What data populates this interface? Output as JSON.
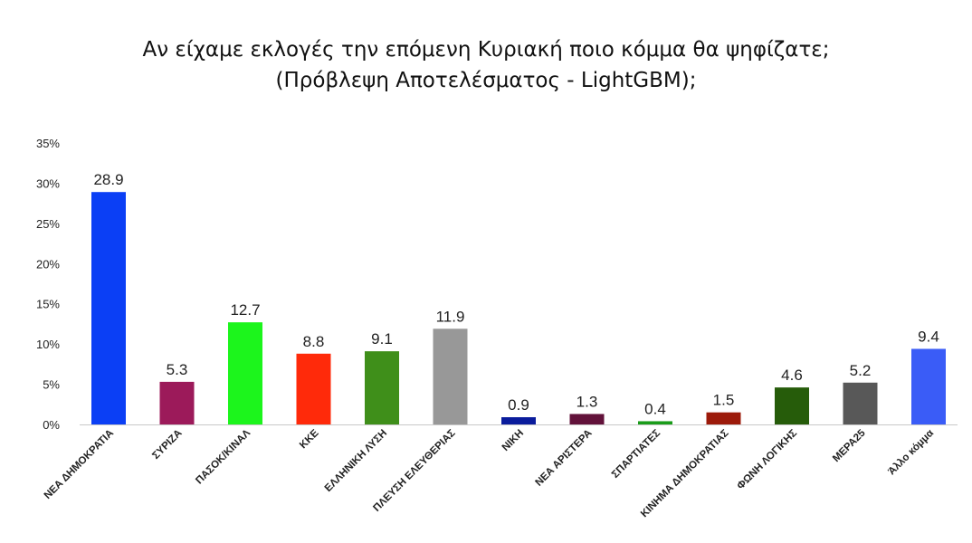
{
  "chart_data": {
    "type": "bar",
    "title": "Αν είχαμε εκλογές την επόμενη Κυριακή ποιο κόμμα θα ψηφίζατε;",
    "subtitle": "(Πρόβλεψη Αποτελέσματος - LightGBM);",
    "xlabel": "",
    "ylabel": "",
    "ylim": [
      0,
      35
    ],
    "yticks": [
      0,
      5,
      10,
      15,
      20,
      25,
      30,
      35
    ],
    "ytick_labels": [
      "0%",
      "5%",
      "10%",
      "15%",
      "20%",
      "25%",
      "30%",
      "35%"
    ],
    "grid": false,
    "legend": "none",
    "categories": [
      "ΝΕΑ ΔΗΜΟΚΡΑΤΙΑ",
      "ΣΥΡΙΖΑ",
      "ΠΑΣΟΚ/ΚΙΝΑΛ",
      "ΚΚΕ",
      "ΕΛΛΗΝΙΚΗ ΛΥΣΗ",
      "ΠΛΕΥΣΗ ΕΛΕΥΘΕΡΙΑΣ",
      "ΝΙΚΗ",
      "ΝΕΑ ΑΡΙΣΤΕΡΑ",
      "ΣΠΑΡΤΙΑΤΕΣ",
      "ΚΙΝΗΜΑ ΔΗΜΟΚΡΑΤΙΑΣ",
      "ΦΩΝΗ ΛΟΓΙΚΗΣ",
      "ΜΕΡΑ25",
      "Άλλο κόμμα"
    ],
    "values": [
      28.9,
      5.3,
      12.7,
      8.8,
      9.1,
      11.9,
      0.9,
      1.3,
      0.4,
      1.5,
      4.6,
      5.2,
      9.4
    ],
    "value_labels": [
      "28.9",
      "5.3",
      "12.7",
      "8.8",
      "9.1",
      "11.9",
      "0.9",
      "1.3",
      "0.4",
      "1.5",
      "4.6",
      "5.2",
      "9.4"
    ],
    "colors": [
      "#0b3ff5",
      "#9c1a5a",
      "#1cf51c",
      "#ff2a0a",
      "#3f8f1a",
      "#989898",
      "#0a1c9c",
      "#62123a",
      "#1a9c1a",
      "#9c1a0a",
      "#265c0a",
      "#585858",
      "#3a5cf7"
    ]
  }
}
